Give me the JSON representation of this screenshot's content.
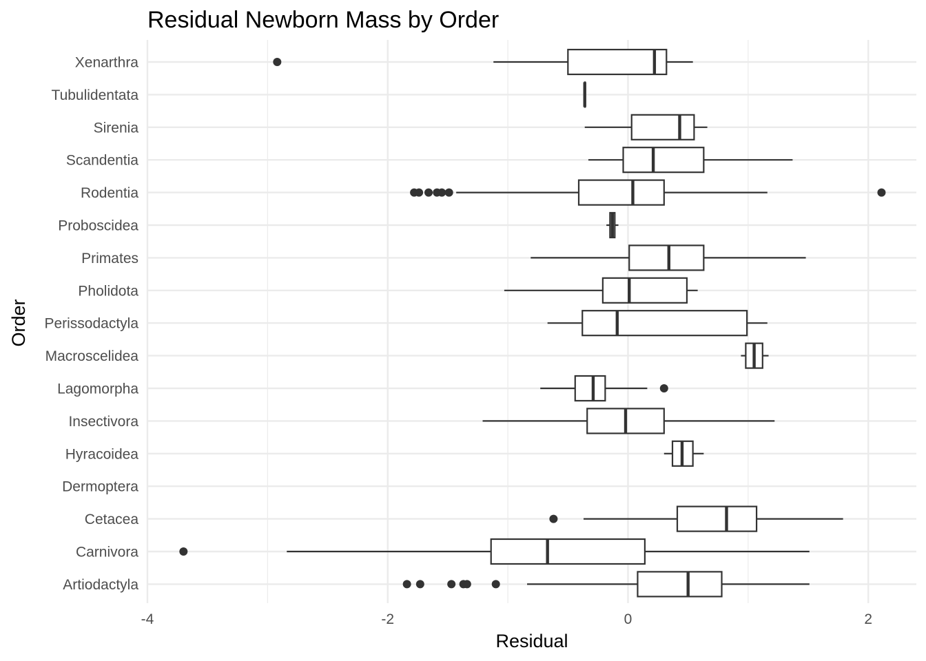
{
  "chart_data": {
    "type": "boxplot",
    "orientation": "horizontal",
    "title": "Residual Newborn Mass by Order",
    "xlabel": "Residual",
    "ylabel": "Order",
    "xlim": [
      -4.0,
      2.4
    ],
    "x_ticks": [
      -4,
      -2,
      0,
      2
    ],
    "x_tick_labels": [
      "-4",
      "-2",
      "0",
      "2"
    ],
    "grid": true,
    "colors": {
      "box_stroke": "#333333",
      "outlier": "#333333",
      "grid": "#ebebeb",
      "background": "#ffffff"
    },
    "categories": [
      "Xenarthra",
      "Tubulidentata",
      "Sirenia",
      "Scandentia",
      "Rodentia",
      "Proboscidea",
      "Primates",
      "Pholidota",
      "Perissodactyla",
      "Macroscelidea",
      "Lagomorpha",
      "Insectivora",
      "Hyracoidea",
      "Dermoptera",
      "Cetacea",
      "Carnivora",
      "Artiodactyla"
    ],
    "boxes": [
      {
        "category": "Xenarthra",
        "whisker_low": -1.12,
        "q1": -0.5,
        "median": 0.22,
        "q3": 0.32,
        "whisker_high": 0.54,
        "outliers": [
          -2.92
        ]
      },
      {
        "category": "Tubulidentata",
        "whisker_low": -0.36,
        "q1": -0.36,
        "median": -0.36,
        "q3": -0.36,
        "whisker_high": -0.36,
        "outliers": []
      },
      {
        "category": "Sirenia",
        "whisker_low": -0.36,
        "q1": 0.03,
        "median": 0.43,
        "q3": 0.55,
        "whisker_high": 0.66,
        "outliers": []
      },
      {
        "category": "Scandentia",
        "whisker_low": -0.33,
        "q1": -0.04,
        "median": 0.21,
        "q3": 0.63,
        "whisker_high": 1.37,
        "outliers": []
      },
      {
        "category": "Rodentia",
        "whisker_low": -1.43,
        "q1": -0.41,
        "median": 0.04,
        "q3": 0.3,
        "whisker_high": 1.16,
        "outliers": [
          -1.78,
          -1.74,
          -1.66,
          -1.59,
          -1.55,
          -1.49,
          2.11
        ]
      },
      {
        "category": "Proboscidea",
        "whisker_low": -0.18,
        "q1": -0.15,
        "median": -0.13,
        "q3": -0.11,
        "whisker_high": -0.08,
        "outliers": []
      },
      {
        "category": "Primates",
        "whisker_low": -0.81,
        "q1": 0.01,
        "median": 0.34,
        "q3": 0.63,
        "whisker_high": 1.48,
        "outliers": []
      },
      {
        "category": "Pholidota",
        "whisker_low": -1.03,
        "q1": -0.21,
        "median": 0.01,
        "q3": 0.49,
        "whisker_high": 0.58,
        "outliers": []
      },
      {
        "category": "Perissodactyla",
        "whisker_low": -0.67,
        "q1": -0.38,
        "median": -0.09,
        "q3": 0.99,
        "whisker_high": 1.16,
        "outliers": []
      },
      {
        "category": "Macroscelidea",
        "whisker_low": 0.94,
        "q1": 0.98,
        "median": 1.05,
        "q3": 1.12,
        "whisker_high": 1.17,
        "outliers": []
      },
      {
        "category": "Lagomorpha",
        "whisker_low": -0.73,
        "q1": -0.44,
        "median": -0.29,
        "q3": -0.19,
        "whisker_high": 0.16,
        "outliers": [
          0.3
        ]
      },
      {
        "category": "Insectivora",
        "whisker_low": -1.21,
        "q1": -0.34,
        "median": -0.02,
        "q3": 0.3,
        "whisker_high": 1.22,
        "outliers": []
      },
      {
        "category": "Hyracoidea",
        "whisker_low": 0.3,
        "q1": 0.37,
        "median": 0.45,
        "q3": 0.54,
        "whisker_high": 0.63,
        "outliers": []
      },
      {
        "category": "Dermoptera",
        "whisker_low": null,
        "q1": null,
        "median": null,
        "q3": null,
        "whisker_high": null,
        "outliers": []
      },
      {
        "category": "Cetacea",
        "whisker_low": -0.37,
        "q1": 0.41,
        "median": 0.82,
        "q3": 1.07,
        "whisker_high": 1.79,
        "outliers": [
          -0.62
        ]
      },
      {
        "category": "Carnivora",
        "whisker_low": -2.84,
        "q1": -1.14,
        "median": -0.67,
        "q3": 0.14,
        "whisker_high": 1.51,
        "outliers": [
          -3.7
        ]
      },
      {
        "category": "Artiodactyla",
        "whisker_low": -0.84,
        "q1": 0.08,
        "median": 0.5,
        "q3": 0.78,
        "whisker_high": 1.51,
        "outliers": [
          -1.84,
          -1.73,
          -1.47,
          -1.37,
          -1.34,
          -1.1
        ]
      }
    ]
  }
}
